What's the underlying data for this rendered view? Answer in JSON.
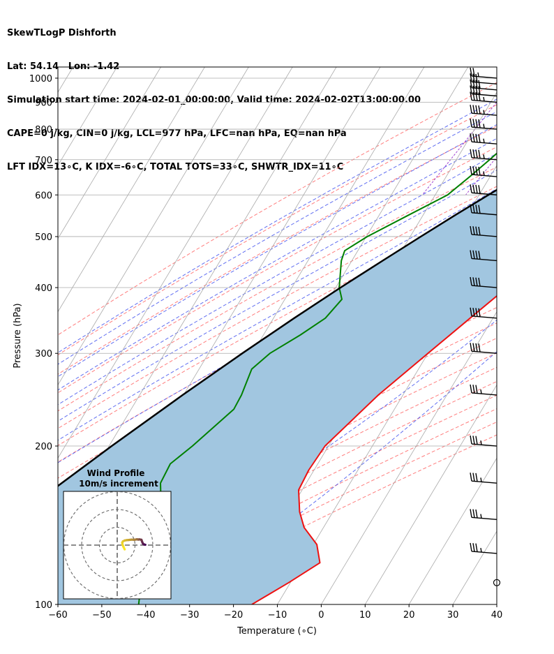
{
  "header": {
    "line1": "SkewTLogP Dishforth",
    "line2": "Lat: 54.14   Lon: -1.42",
    "line3": "Simulation start time: 2024-02-01_00:00:00, Valid time: 2024-02-02T13:00:00.00",
    "line4": "CAPE=0 j/kg, CIN=0 j/kg, LCL=977 hPa, LFC=nan hPa, EQ=nan hPa",
    "line5": "LFT IDX=13∘C, K IDX=-6∘C, TOTAL TOTS=33∘C, SHWTR_IDX=11∘C"
  },
  "colors": {
    "temperature": "#ee1111",
    "dewpoint": "#008000",
    "parcel": "#000000",
    "shade": "#a1c6e0",
    "dry_adiabat": "#ff6666",
    "moist_adiabat": "#4455ee",
    "mixing_ratio": "#9933cc",
    "isotherm": "#aaaaaa"
  },
  "chart_data": {
    "type": "skewt",
    "xlabel": "Temperature (∘C)",
    "ylabel": "Pressure (hPa)",
    "xlim": [
      -60,
      40
    ],
    "ylim": [
      1050,
      100
    ],
    "x_ticks": [
      "−60",
      "−50",
      "−40",
      "−30",
      "−20",
      "−10",
      "0",
      "10",
      "20",
      "30",
      "40"
    ],
    "x_tick_values": [
      -60,
      -50,
      -40,
      -30,
      -20,
      -10,
      0,
      10,
      20,
      30,
      40
    ],
    "y_ticks": [
      "100",
      "200",
      "300",
      "400",
      "500",
      "600",
      "700",
      "800",
      "900",
      "1000"
    ],
    "y_tick_values": [
      100,
      200,
      300,
      400,
      500,
      600,
      700,
      800,
      900,
      1000
    ],
    "grid": true,
    "series": [
      {
        "key": "temperature",
        "points": [
          [
            1000,
            9.8
          ],
          [
            990,
            9.6
          ],
          [
            975,
            10.8
          ],
          [
            950,
            14.4
          ],
          [
            925,
            16.8
          ],
          [
            900,
            17.8
          ],
          [
            875,
            18.3
          ],
          [
            850,
            18.6
          ],
          [
            800,
            18.2
          ],
          [
            750,
            15.8
          ],
          [
            700,
            13.0
          ],
          [
            650,
            10.6
          ],
          [
            600,
            8.4
          ],
          [
            550,
            6.4
          ],
          [
            500,
            4.8
          ],
          [
            450,
            2.6
          ],
          [
            400,
            -1.0
          ],
          [
            350,
            -5.2
          ],
          [
            300,
            -10.0
          ],
          [
            250,
            -15.6
          ],
          [
            200,
            -20.8
          ],
          [
            180,
            -21.2
          ],
          [
            165,
            -20.8
          ],
          [
            150,
            -17.6
          ],
          [
            140,
            -14.4
          ],
          [
            130,
            -9.2
          ],
          [
            120,
            -6.0
          ],
          [
            110,
            -10.4
          ],
          [
            100,
            -15.8
          ]
        ]
      },
      {
        "key": "dewpoint",
        "points": [
          [
            1000,
            8.8
          ],
          [
            975,
            9.2
          ],
          [
            950,
            7.0
          ],
          [
            925,
            3.4
          ],
          [
            900,
            -2.0
          ],
          [
            850,
            -9.6
          ],
          [
            800,
            -17.2
          ],
          [
            750,
            -20.5
          ],
          [
            700,
            -22.4
          ],
          [
            650,
            -24.6
          ],
          [
            600,
            -27.2
          ],
          [
            550,
            -33.2
          ],
          [
            500,
            -39.8
          ],
          [
            470,
            -43.0
          ],
          [
            450,
            -42.4
          ],
          [
            400,
            -39.2
          ],
          [
            380,
            -37.0
          ],
          [
            350,
            -38.2
          ],
          [
            325,
            -41.6
          ],
          [
            300,
            -46.0
          ],
          [
            280,
            -48.0
          ],
          [
            250,
            -46.8
          ],
          [
            235,
            -46.6
          ],
          [
            200,
            -51.0
          ],
          [
            185,
            -53.6
          ],
          [
            170,
            -53.2
          ],
          [
            155,
            -50.2
          ],
          [
            140,
            -47.2
          ],
          [
            125,
            -45.8
          ],
          [
            110,
            -44.0
          ],
          [
            100,
            -41.6
          ]
        ]
      },
      {
        "key": "parcel",
        "points": [
          [
            1000,
            11.2
          ],
          [
            977,
            9.2
          ],
          [
            950,
            7.5
          ],
          [
            900,
            4.4
          ],
          [
            850,
            1.3
          ],
          [
            800,
            -2.0
          ],
          [
            750,
            -5.5
          ],
          [
            700,
            -9.2
          ],
          [
            650,
            -13.4
          ],
          [
            600,
            -17.9
          ],
          [
            550,
            -22.6
          ],
          [
            500,
            -27.6
          ],
          [
            450,
            -33.0
          ],
          [
            400,
            -38.9
          ],
          [
            350,
            -45.3
          ],
          [
            300,
            -52.3
          ],
          [
            250,
            -60.2
          ],
          [
            200,
            -69.4
          ],
          [
            150,
            -80.6
          ],
          [
            100,
            -95.0
          ]
        ]
      }
    ],
    "wind_barbs": {
      "pressures": [
        1000,
        975,
        950,
        925,
        900,
        850,
        800,
        750,
        700,
        650,
        600,
        550,
        500,
        450,
        400,
        350,
        300,
        250,
        200,
        170,
        145,
        125,
        110
      ],
      "speed_kt": [
        25,
        30,
        40,
        40,
        45,
        45,
        45,
        45,
        45,
        45,
        40,
        40,
        40,
        40,
        40,
        40,
        40,
        35,
        35,
        35,
        35,
        35,
        35
      ],
      "calm_at": 110
    },
    "hodograph": {
      "title": "Wind Profile",
      "subtitle": "10m/s increment",
      "u": [
        15.8,
        15.0,
        14.5,
        14.2,
        13.9,
        13.6,
        12.5,
        12.2,
        11.8,
        11.2,
        10.8,
        10.2,
        9.6,
        8.4,
        7.4,
        6.4,
        5.4,
        4.2,
        3.2,
        2.8,
        3.0,
        3.6,
        4.2
      ],
      "v": [
        0.2,
        0.4,
        0.8,
        1.4,
        2.2,
        3.0,
        3.2,
        3.2,
        3.1,
        3.3,
        3.2,
        3.1,
        3.0,
        3.1,
        3.0,
        2.9,
        2.8,
        2.6,
        2.1,
        1.4,
        0.2,
        -1.2,
        -2.4
      ],
      "rings": [
        10,
        20,
        30
      ]
    }
  }
}
